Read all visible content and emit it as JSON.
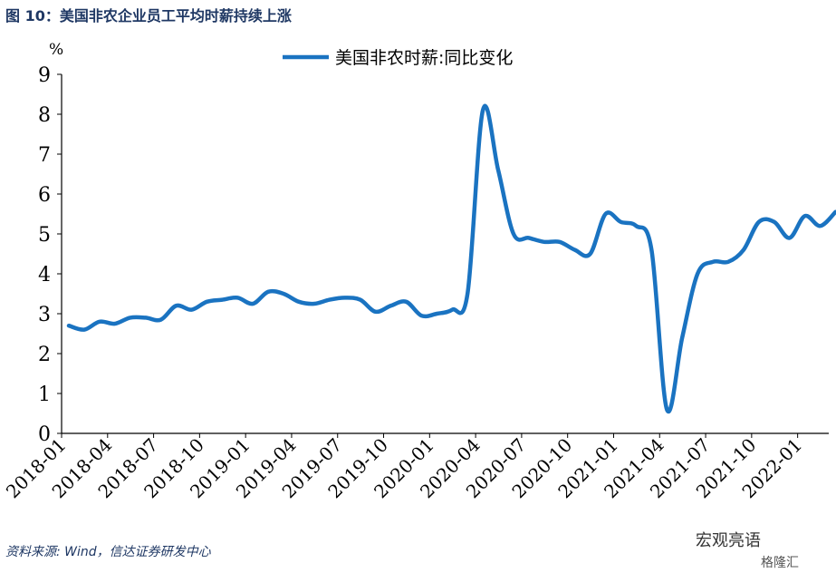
{
  "figure": {
    "title": "图 10：美国非农企业员工平均时薪持续上涨",
    "source": "资料来源: Wind，信达证券研发中心",
    "watermark_account": "宏观亮语",
    "watermark_site": "格隆汇"
  },
  "colors": {
    "line": "#1a73c1",
    "title": "#1f3864",
    "axis": "#000000"
  },
  "chart_data": {
    "type": "line",
    "ylabel": "%",
    "ylim": [
      0,
      9
    ],
    "yticks": [
      0,
      1,
      2,
      3,
      4,
      5,
      6,
      7,
      8,
      9
    ],
    "grid": false,
    "legend": "top",
    "xtick_labels": [
      "2018-01",
      "2018-04",
      "2018-07",
      "2018-10",
      "2019-01",
      "2019-04",
      "2019-07",
      "2019-10",
      "2020-01",
      "2020-04",
      "2020-07",
      "2020-10",
      "2021-01",
      "2021-04",
      "2021-07",
      "2021-10",
      "2022-01"
    ],
    "x": [
      "2018-01",
      "2018-02",
      "2018-03",
      "2018-04",
      "2018-05",
      "2018-06",
      "2018-07",
      "2018-08",
      "2018-09",
      "2018-10",
      "2018-11",
      "2018-12",
      "2019-01",
      "2019-02",
      "2019-03",
      "2019-04",
      "2019-05",
      "2019-06",
      "2019-07",
      "2019-08",
      "2019-09",
      "2019-10",
      "2019-11",
      "2019-12",
      "2020-01",
      "2020-02",
      "2020-03",
      "2020-04",
      "2020-05",
      "2020-06",
      "2020-07",
      "2020-08",
      "2020-09",
      "2020-10",
      "2020-11",
      "2020-12",
      "2021-01",
      "2021-02",
      "2021-03",
      "2021-04",
      "2021-05",
      "2021-06",
      "2021-07",
      "2021-08",
      "2021-09",
      "2021-10",
      "2021-11",
      "2021-12",
      "2022-01",
      "2022-02",
      "2022-03"
    ],
    "series": [
      {
        "name": "美国非农时薪:同比变化",
        "values": [
          2.7,
          2.6,
          2.8,
          2.75,
          2.9,
          2.9,
          2.85,
          3.2,
          3.1,
          3.3,
          3.35,
          3.4,
          3.25,
          3.55,
          3.5,
          3.3,
          3.25,
          3.35,
          3.4,
          3.35,
          3.05,
          3.2,
          3.3,
          2.95,
          3.0,
          3.1,
          3.5,
          8.1,
          6.6,
          5.0,
          4.9,
          4.8,
          4.8,
          4.6,
          4.5,
          5.5,
          5.3,
          5.2,
          4.6,
          0.6,
          2.4,
          4.0,
          4.3,
          4.3,
          4.6,
          5.3,
          5.3,
          4.9,
          5.45,
          5.2,
          5.55
        ]
      }
    ]
  }
}
